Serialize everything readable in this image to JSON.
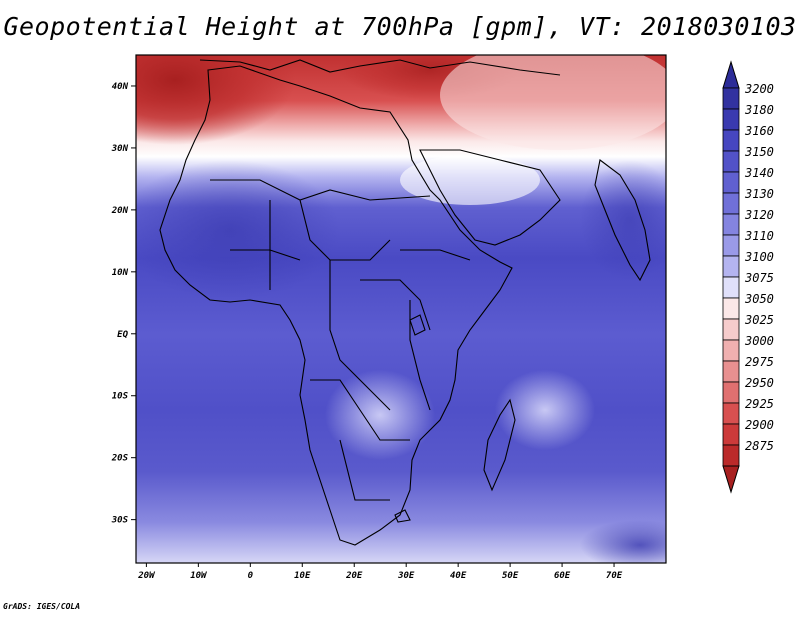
{
  "title": "Geopotential Height at 700hPa [gpm], VT: 2018030103",
  "credit": "GrADS: IGES/COLA",
  "map": {
    "lon_range": [
      -22,
      80
    ],
    "lat_range": [
      -37,
      45
    ],
    "lat_labels": [
      {
        "lat": 40,
        "text": "40N"
      },
      {
        "lat": 30,
        "text": "30N"
      },
      {
        "lat": 20,
        "text": "20N"
      },
      {
        "lat": 10,
        "text": "10N"
      },
      {
        "lat": 0,
        "text": "EQ"
      },
      {
        "lat": -10,
        "text": "10S"
      },
      {
        "lat": -20,
        "text": "20S"
      },
      {
        "lat": -30,
        "text": "30S"
      }
    ],
    "lon_labels": [
      {
        "lon": -20,
        "text": "20W"
      },
      {
        "lon": -10,
        "text": "10W"
      },
      {
        "lon": 0,
        "text": "0"
      },
      {
        "lon": 10,
        "text": "10E"
      },
      {
        "lon": 20,
        "text": "20E"
      },
      {
        "lon": 30,
        "text": "30E"
      },
      {
        "lon": 40,
        "text": "40E"
      },
      {
        "lon": 50,
        "text": "50E"
      },
      {
        "lon": 60,
        "text": "60E"
      },
      {
        "lon": 70,
        "text": "70E"
      }
    ]
  },
  "colorbar": {
    "levels": [
      {
        "label": "3200",
        "color": "#3232a0"
      },
      {
        "label": "3180",
        "color": "#3a3ab0"
      },
      {
        "label": "3160",
        "color": "#4646c0"
      },
      {
        "label": "3150",
        "color": "#5252c8"
      },
      {
        "label": "3140",
        "color": "#6060d0"
      },
      {
        "label": "3130",
        "color": "#7070d8"
      },
      {
        "label": "3120",
        "color": "#8484e0"
      },
      {
        "label": "3110",
        "color": "#9a9ae8"
      },
      {
        "label": "3100",
        "color": "#b4b4f0"
      },
      {
        "label": "3075",
        "color": "#e0e0fa"
      },
      {
        "label": "3050",
        "color": "#fbe8e8"
      },
      {
        "label": "3025",
        "color": "#f6cccc"
      },
      {
        "label": "3000",
        "color": "#f0b0b0"
      },
      {
        "label": "2975",
        "color": "#e89090"
      },
      {
        "label": "2950",
        "color": "#e07070"
      },
      {
        "label": "2925",
        "color": "#d85050"
      },
      {
        "label": "2900",
        "color": "#cc3a3a"
      },
      {
        "label": "2875",
        "color": "#bb2a2a"
      }
    ],
    "top_cap_color": "#2c2c98",
    "bottom_cap_color": "#a82020"
  }
}
